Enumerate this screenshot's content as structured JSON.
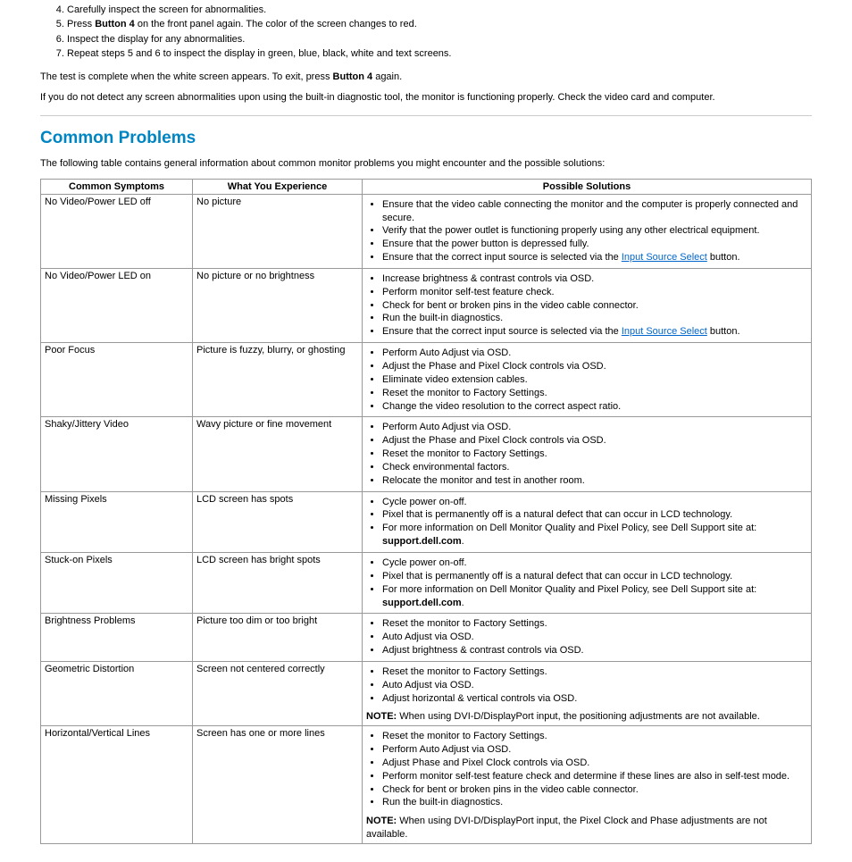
{
  "steps": {
    "start": 4,
    "items": [
      "Carefully inspect the screen for abnormalities.",
      {
        "pre": "Press ",
        "bold": "Button 4",
        "post": " on the front panel again. The color of the screen changes to red."
      },
      "Inspect the display for any abnormalities.",
      "Repeat steps 5 and 6 to inspect the display in green, blue, black, white and text screens."
    ]
  },
  "para1": {
    "pre": "The test is complete when the white screen appears. To exit, press ",
    "bold": "Button 4",
    "post": " again."
  },
  "para2": "If you do not detect any screen abnormalities upon using the built-in diagnostic tool, the monitor is functioning properly. Check the video card and computer.",
  "heading": "Common Problems",
  "intro": "The following table contains general information about common monitor problems you might encounter and the possible solutions:",
  "table": {
    "headers": [
      "Common Symptoms",
      "What You Experience",
      "Possible Solutions"
    ],
    "rows": [
      {
        "sym": "No Video/Power LED off",
        "exp": "No picture",
        "sol": [
          "Ensure that the video cable connecting the monitor and the computer is properly connected and secure.",
          "Verify that the power outlet is functioning properly using any other electrical equipment.",
          "Ensure that the power button is depressed fully.",
          {
            "pre": "Ensure that the correct input source is selected via the ",
            "link": "Input Source Select",
            "post": " button."
          }
        ]
      },
      {
        "sym": "No Video/Power LED on",
        "exp": "No picture or no brightness",
        "sol": [
          "Increase brightness & contrast controls via OSD.",
          "Perform monitor self-test feature check.",
          "Check for bent or broken pins in the video cable connector.",
          "Run the built-in diagnostics.",
          {
            "pre": "Ensure that the correct input source is selected via the ",
            "link": "Input Source Select",
            "post": " button."
          }
        ]
      },
      {
        "sym": "Poor Focus",
        "exp": "Picture is fuzzy, blurry, or ghosting",
        "sol": [
          "Perform Auto Adjust via OSD.",
          "Adjust the Phase and Pixel Clock controls via OSD.",
          "Eliminate video extension cables.",
          "Reset the monitor to Factory Settings.",
          "Change the video resolution to the correct aspect ratio."
        ]
      },
      {
        "sym": "Shaky/Jittery Video",
        "exp": "Wavy picture or fine movement",
        "sol": [
          "Perform Auto Adjust via OSD.",
          "Adjust the Phase and Pixel Clock controls via OSD.",
          "Reset the monitor to Factory Settings.",
          "Check environmental factors.",
          "Relocate the monitor and test in another room."
        ]
      },
      {
        "sym": "Missing Pixels",
        "exp": "LCD screen has spots",
        "sol": [
          "Cycle power on-off.",
          "Pixel that is permanently off is a natural defect that can occur in LCD technology.",
          {
            "pre": "For more information on Dell Monitor Quality and Pixel Policy, see Dell Support site at: ",
            "bold": "support.dell.com",
            "post": "."
          }
        ]
      },
      {
        "sym": "Stuck-on Pixels",
        "exp": "LCD screen has bright spots",
        "sol": [
          "Cycle power on-off.",
          "Pixel that is permanently off is a natural defect that can occur in LCD technology.",
          {
            "pre": "For more information on Dell Monitor Quality and Pixel Policy, see Dell Support site at: ",
            "bold": "support.dell.com",
            "post": "."
          }
        ]
      },
      {
        "sym": "Brightness Problems",
        "exp": "Picture too dim or too bright",
        "sol": [
          "Reset the monitor to Factory Settings.",
          "Auto Adjust via OSD.",
          "Adjust brightness & contrast controls via OSD."
        ]
      },
      {
        "sym": "Geometric Distortion",
        "exp": "Screen not centered correctly",
        "sol": [
          "Reset the monitor to Factory Settings.",
          "Auto Adjust via OSD.",
          "Adjust horizontal & vertical controls via OSD."
        ],
        "note": {
          "label": "NOTE:",
          "text": " When using DVI-D/DisplayPort input, the positioning adjustments are not available."
        }
      },
      {
        "sym": "Horizontal/Vertical Lines",
        "exp": "Screen has one or more lines",
        "sol": [
          "Reset the monitor to Factory Settings.",
          "Perform Auto Adjust via OSD.",
          "Adjust Phase and Pixel Clock controls via OSD.",
          "Perform monitor self-test feature check and determine if these lines are also in self-test mode.",
          "Check for bent or broken pins in the video cable connector.",
          "Run the built-in diagnostics."
        ],
        "note": {
          "label": "NOTE:",
          "text": " When using DVI-D/DisplayPort input, the Pixel Clock and Phase adjustments are not available."
        }
      }
    ]
  }
}
